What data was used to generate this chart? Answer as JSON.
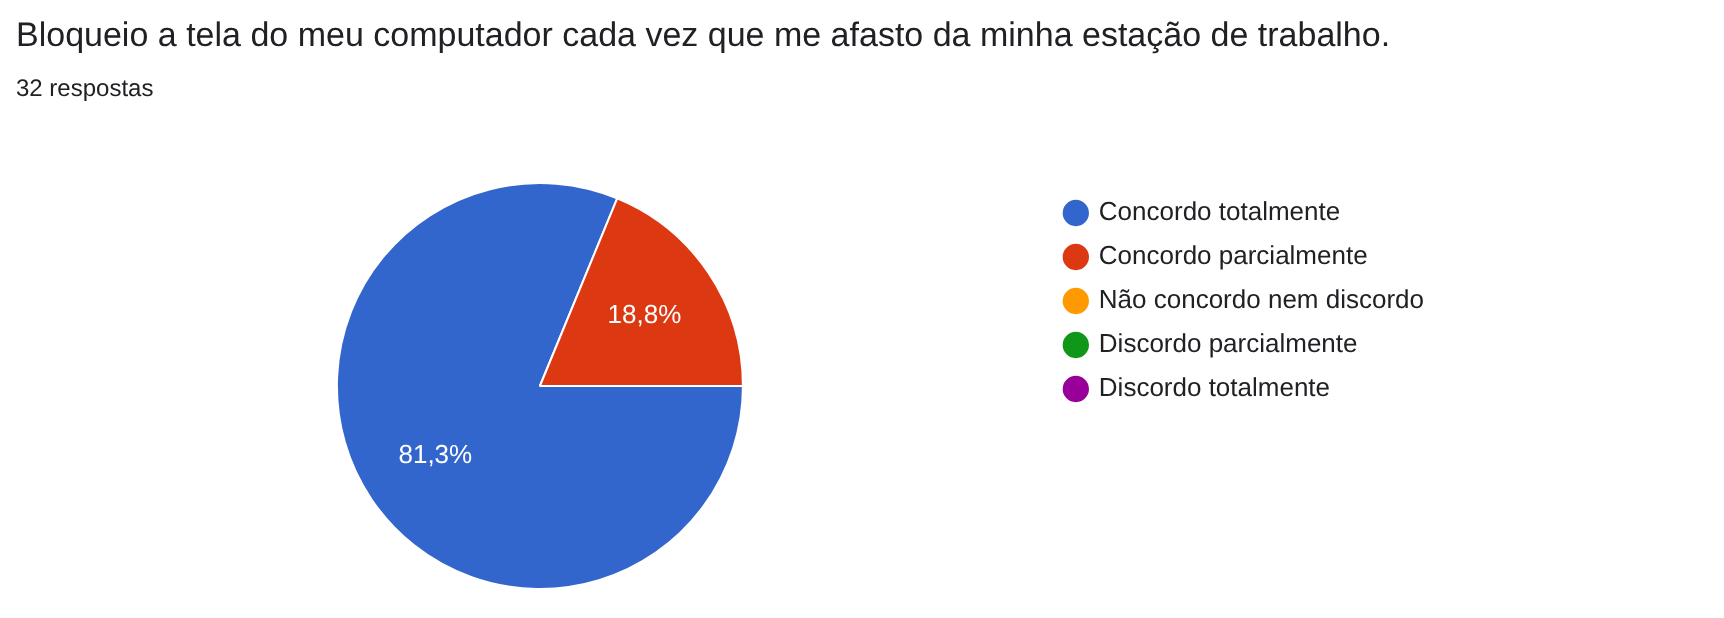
{
  "chart_data": {
    "type": "pie",
    "title": "Bloqueio a tela do meu computador cada vez que me afasto da minha estação de trabalho.",
    "subtitle": "32 respostas",
    "categories": [
      "Concordo totalmente",
      "Concordo parcialmente",
      "Não concordo nem discordo",
      "Discordo parcialmente",
      "Discordo totalmente"
    ],
    "values": [
      81.3,
      18.8,
      0,
      0,
      0
    ],
    "colors": [
      "#3366cc",
      "#dc3912",
      "#ff9900",
      "#109618",
      "#990099"
    ],
    "value_labels": [
      "81,3%",
      "18,8%",
      null,
      null,
      null
    ],
    "legend": "right"
  }
}
